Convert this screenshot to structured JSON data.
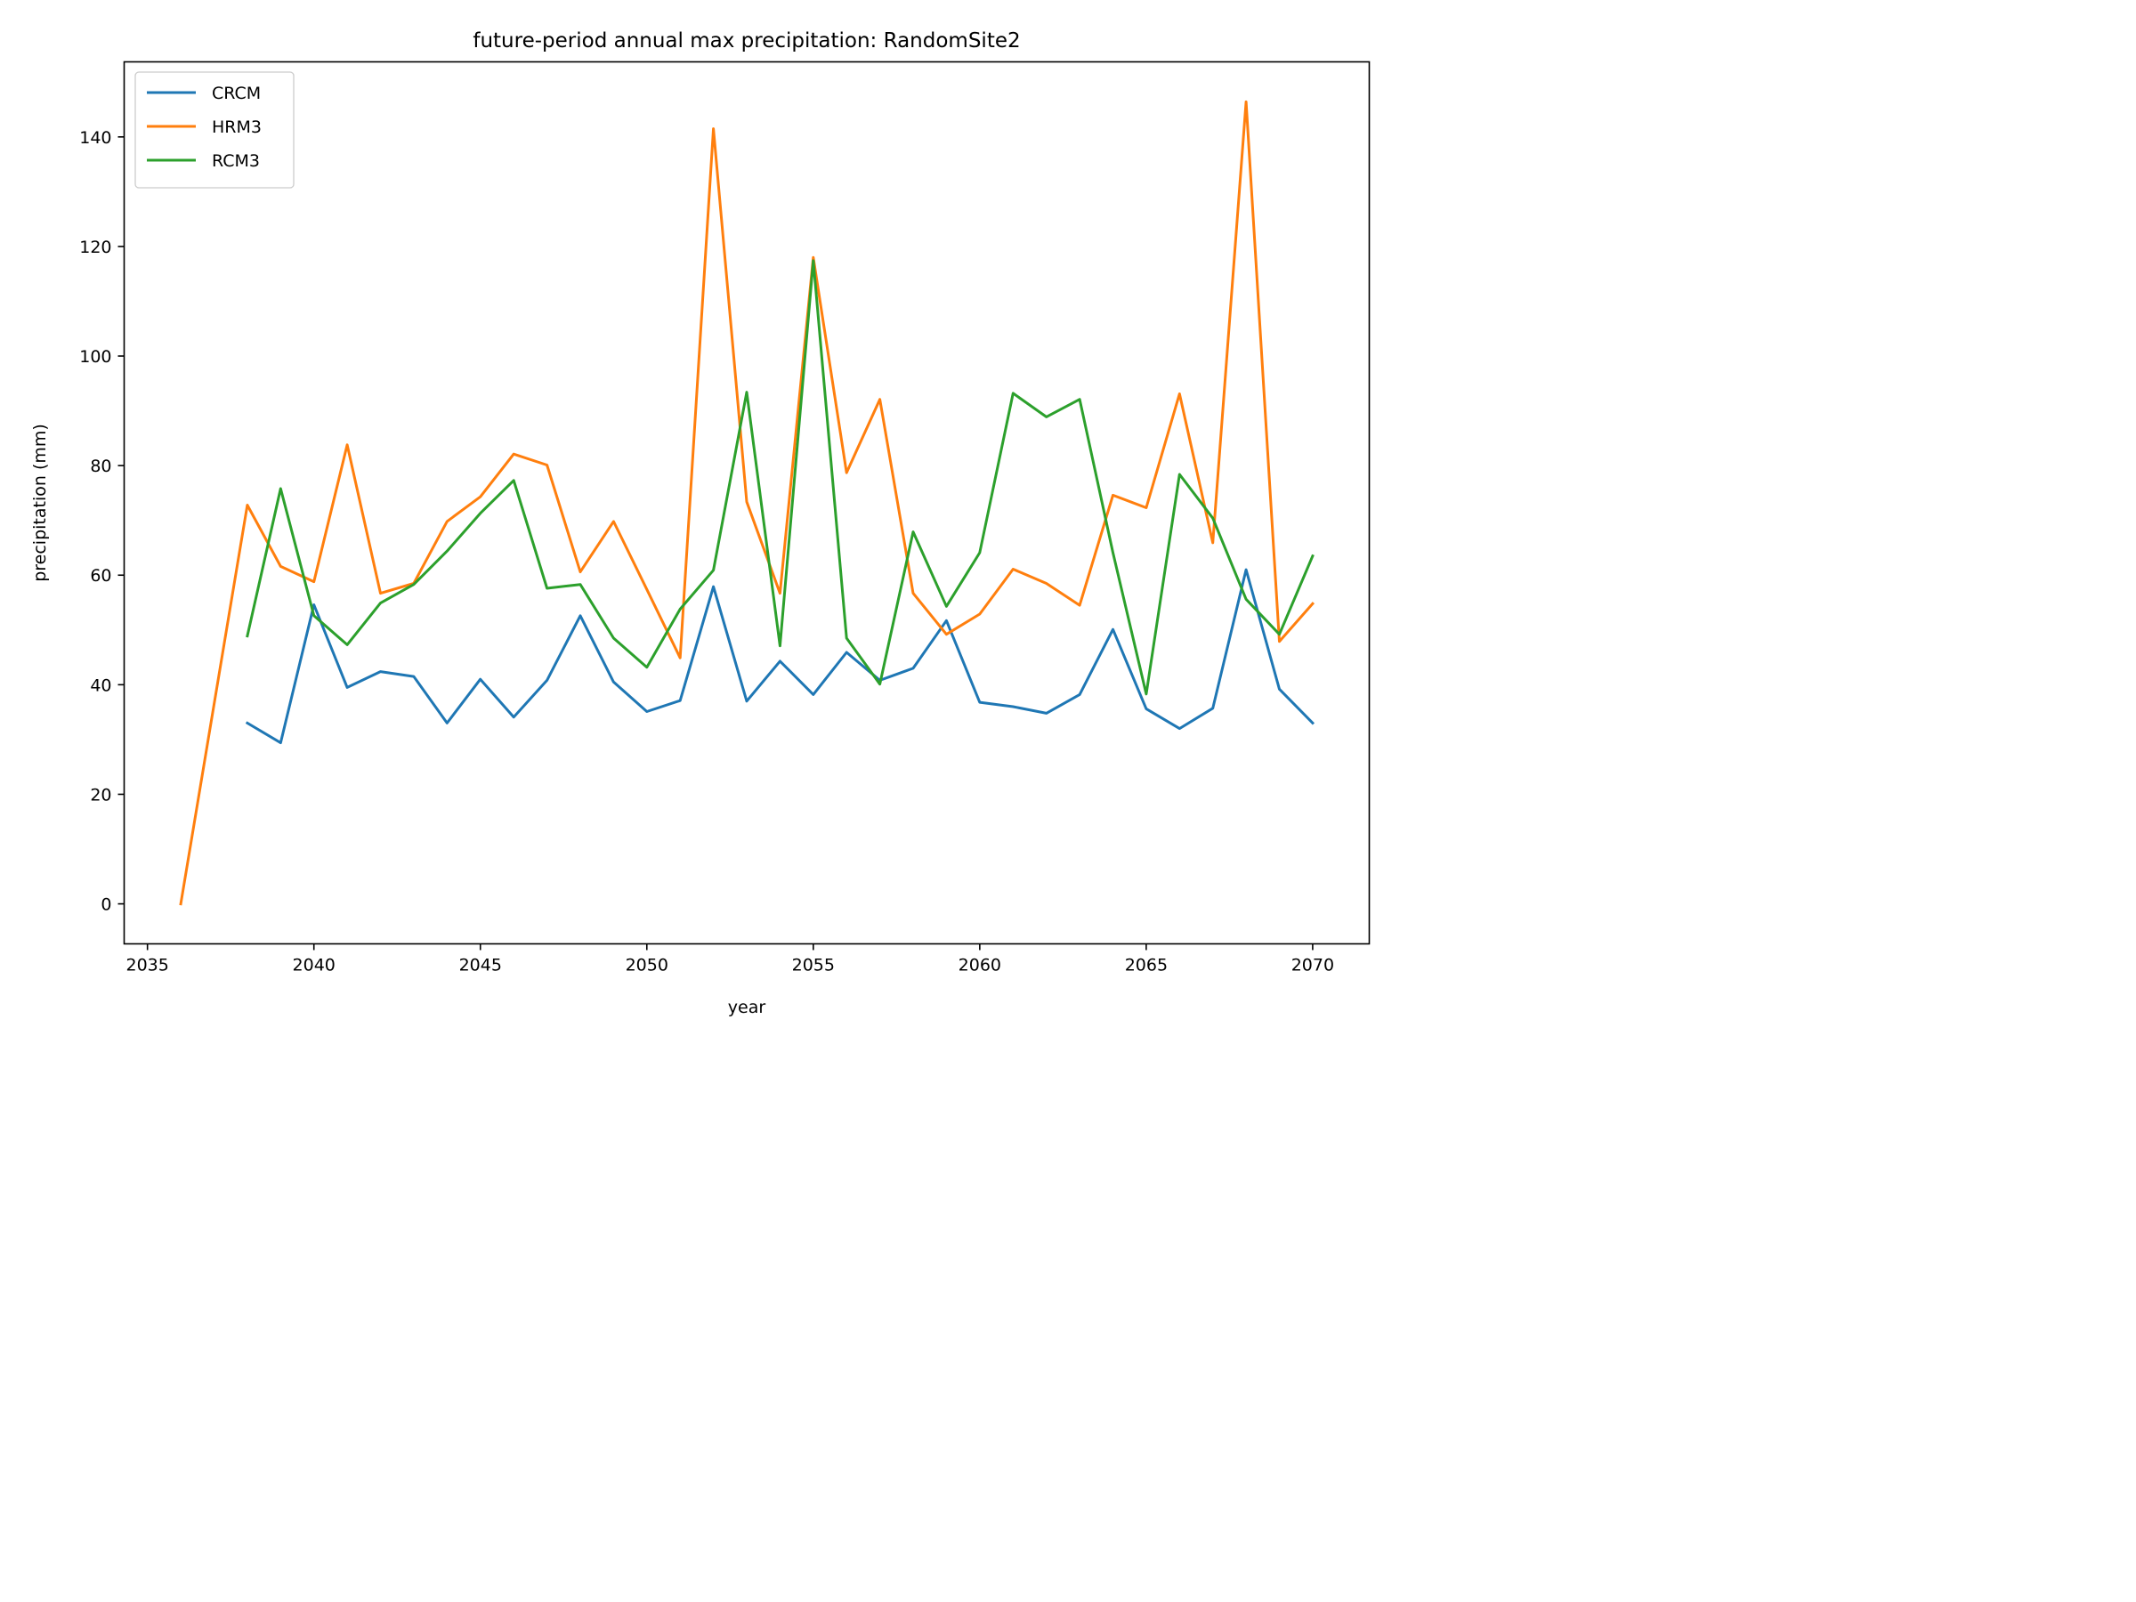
{
  "chart_data": {
    "type": "line",
    "title": "future-period annual max precipitation: RandomSite2",
    "xlabel": "year",
    "ylabel": "precipitation (mm)",
    "xlim": [
      2034.3,
      2071.7
    ],
    "ylim": [
      -7.3,
      153.7
    ],
    "xticks": [
      2035,
      2040,
      2045,
      2050,
      2055,
      2060,
      2065,
      2070
    ],
    "yticks": [
      0,
      20,
      40,
      60,
      80,
      100,
      120,
      140
    ],
    "grid": false,
    "legend_position": "upper left",
    "series": [
      {
        "name": "CRCM",
        "color": "#1f77b4",
        "x": [
          2038,
          2039,
          2040,
          2041,
          2042,
          2043,
          2044,
          2045,
          2046,
          2047,
          2048,
          2049,
          2050,
          2051,
          2052,
          2053,
          2054,
          2055,
          2056,
          2057,
          2058,
          2059,
          2060,
          2061,
          2062,
          2063,
          2064,
          2065,
          2066,
          2067,
          2068,
          2069,
          2070
        ],
        "y": [
          33.0,
          29.4,
          54.6,
          39.5,
          42.4,
          41.5,
          33.0,
          41.0,
          34.1,
          40.8,
          52.6,
          40.5,
          35.1,
          37.1,
          57.9,
          37.0,
          44.3,
          38.2,
          45.9,
          40.8,
          43.0,
          51.7,
          36.8,
          36.0,
          34.8,
          38.2,
          50.1,
          35.6,
          32.0,
          35.7,
          61.0,
          39.2,
          33.0
        ]
      },
      {
        "name": "HRM3",
        "color": "#ff7f0e",
        "x": [
          2036,
          2037,
          2038,
          2039,
          2040,
          2041,
          2042,
          2043,
          2044,
          2045,
          2046,
          2047,
          2048,
          2049,
          2050,
          2051,
          2052,
          2053,
          2054,
          2055,
          2056,
          2057,
          2058,
          2059,
          2060,
          2061,
          2062,
          2063,
          2064,
          2065,
          2066,
          2067,
          2068,
          2069,
          2070
        ],
        "y": [
          0.0,
          36.4,
          72.8,
          61.6,
          58.8,
          83.8,
          56.7,
          58.5,
          69.8,
          74.3,
          82.1,
          80.1,
          60.6,
          69.8,
          57.4,
          44.9,
          141.5,
          73.4,
          56.7,
          118.0,
          78.7,
          92.1,
          56.7,
          49.2,
          52.9,
          61.1,
          58.5,
          54.5,
          74.6,
          72.3,
          93.1,
          65.9,
          146.4,
          47.9,
          54.8
        ]
      },
      {
        "name": "RCM3",
        "color": "#2ca02c",
        "x": [
          2038,
          2039,
          2040,
          2041,
          2042,
          2043,
          2044,
          2045,
          2046,
          2047,
          2048,
          2049,
          2050,
          2051,
          2052,
          2053,
          2054,
          2055,
          2056,
          2057,
          2058,
          2059,
          2060,
          2061,
          2062,
          2063,
          2064,
          2065,
          2066,
          2067,
          2068,
          2069,
          2070
        ],
        "y": [
          48.9,
          75.8,
          52.6,
          47.3,
          54.9,
          58.3,
          64.4,
          71.3,
          77.3,
          57.6,
          58.3,
          48.5,
          43.2,
          53.8,
          60.9,
          93.4,
          47.1,
          117.4,
          48.5,
          40.1,
          67.9,
          54.3,
          64.1,
          93.2,
          88.9,
          92.1,
          64.1,
          38.3,
          78.4,
          70.4,
          55.6,
          49.2,
          63.5
        ]
      }
    ]
  }
}
